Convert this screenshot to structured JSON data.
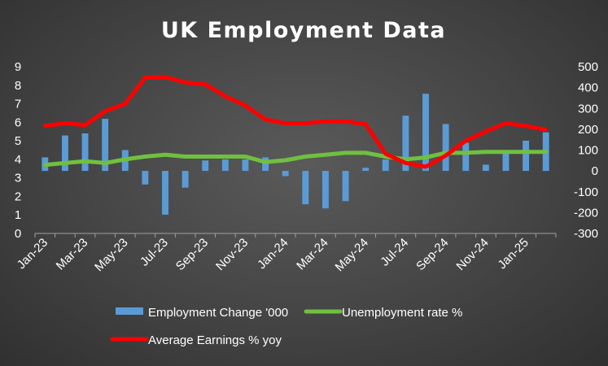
{
  "chart_data": {
    "type": "bar+line",
    "title": "UK Employment Data",
    "x": [
      "Jan-23",
      "Feb-23",
      "Mar-23",
      "Apr-23",
      "May-23",
      "Jun-23",
      "Jul-23",
      "Aug-23",
      "Sep-23",
      "Oct-23",
      "Nov-23",
      "Dec-23",
      "Jan-24",
      "Feb-24",
      "Mar-24",
      "Apr-24",
      "May-24",
      "Jun-24",
      "Jul-24",
      "Aug-24",
      "Sep-24",
      "Oct-24",
      "Nov-24",
      "Dec-24",
      "Jan-25",
      "Feb-25"
    ],
    "x_tick_labels": [
      "Jan-23",
      "Mar-23",
      "May-23",
      "Jul-23",
      "Sep-23",
      "Nov-23",
      "Jan-24",
      "Mar-24",
      "May-24",
      "Jul-24",
      "Sep-24",
      "Nov-24",
      "Jan-25"
    ],
    "left_axis": {
      "ylim": [
        0,
        9
      ],
      "ticks": [
        "0",
        "1",
        "2",
        "3",
        "4",
        "5",
        "6",
        "7",
        "8",
        "9"
      ]
    },
    "right_axis": {
      "ylim": [
        -300,
        500
      ],
      "ticks": [
        "-300",
        "-200",
        "-100",
        "0",
        "100",
        "200",
        "300",
        "400",
        "500"
      ]
    },
    "series": [
      {
        "name": "Employment Change '000",
        "type": "bar",
        "axis": "right",
        "color": "#5b9bd5",
        "values": [
          65,
          170,
          180,
          250,
          100,
          -65,
          -210,
          -80,
          50,
          55,
          55,
          65,
          -25,
          -160,
          -180,
          -145,
          15,
          55,
          265,
          370,
          225,
          135,
          30,
          100,
          145,
          185
        ]
      },
      {
        "name": "Unemployment rate %",
        "type": "line",
        "axis": "left",
        "color": "#70c040",
        "values": [
          3.7,
          3.8,
          3.9,
          3.8,
          4.0,
          4.15,
          4.25,
          4.15,
          4.15,
          4.15,
          4.15,
          3.85,
          3.95,
          4.15,
          4.25,
          4.35,
          4.35,
          4.15,
          4.0,
          4.1,
          4.35,
          4.35,
          4.4,
          4.4,
          4.4,
          4.4
        ]
      },
      {
        "name": "Average Earnings % yoy",
        "type": "line",
        "axis": "left",
        "color": "#ff0000",
        "values": [
          5.8,
          5.95,
          5.85,
          6.6,
          7.0,
          8.4,
          8.45,
          8.15,
          8.05,
          7.4,
          6.9,
          6.15,
          5.95,
          5.95,
          6.05,
          6.05,
          5.9,
          4.3,
          3.8,
          3.6,
          4.2,
          5.0,
          5.5,
          5.95,
          5.8,
          5.6
        ]
      }
    ],
    "legend_position": "bottom",
    "grid": false
  }
}
